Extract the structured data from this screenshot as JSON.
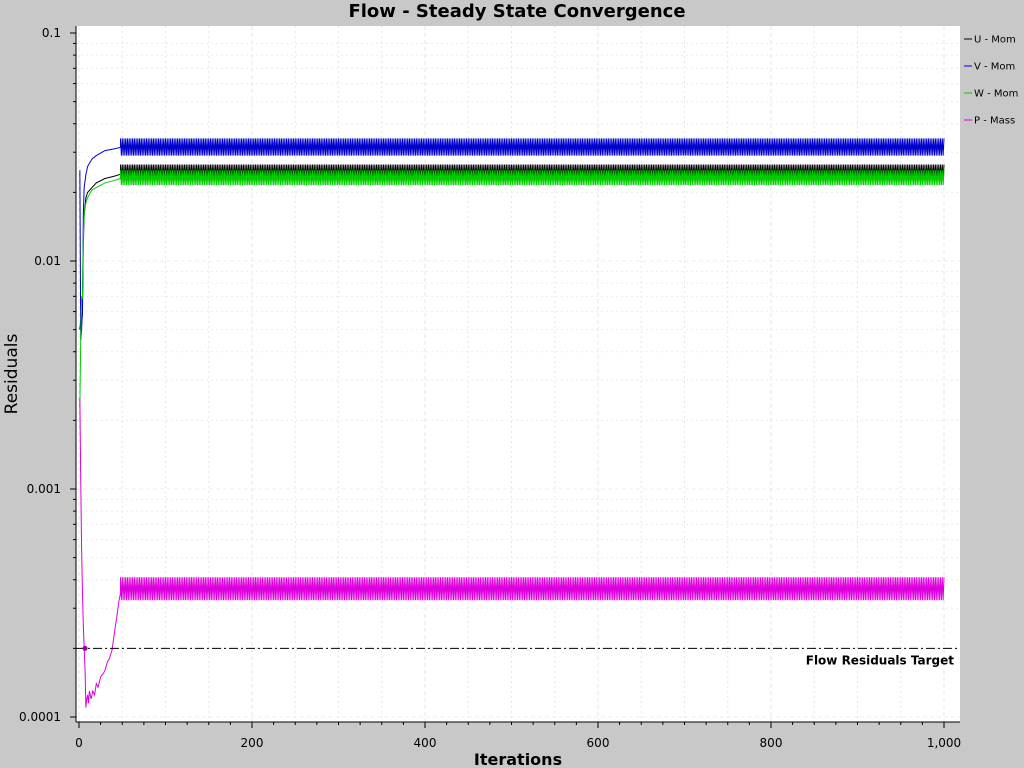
{
  "chart_data": {
    "type": "line",
    "title": "Flow - Steady State Convergence",
    "xlabel": "Iterations",
    "ylabel": "Residuals",
    "xlim": [
      0,
      1000
    ],
    "ylim": [
      0.0001,
      0.1
    ],
    "yscale": "log",
    "x_ticks": [
      0,
      200,
      400,
      600,
      800,
      1000
    ],
    "x_tick_labels": [
      "0",
      "200",
      "400",
      "600",
      "800",
      "1,000"
    ],
    "y_ticks": [
      0.1,
      0.01,
      0.001,
      0.0001
    ],
    "y_tick_labels": [
      "0.1",
      "0.01",
      "0.001",
      "0.0001"
    ],
    "grid": true,
    "legend_position": "top-right",
    "series": [
      {
        "name": "U - Mom",
        "color": "#000000",
        "x": [
          1,
          2,
          3,
          4,
          5,
          6,
          8,
          10,
          15,
          20,
          30,
          40,
          48
        ],
        "y": [
          0.005,
          0.0055,
          0.0052,
          0.006,
          0.012,
          0.016,
          0.019,
          0.02,
          0.021,
          0.022,
          0.023,
          0.0235,
          0.024
        ],
        "oscillation": {
          "start": 48,
          "end": 1000,
          "min": 0.0225,
          "max": 0.0265,
          "period": 2
        }
      },
      {
        "name": "V - Mom",
        "color": "#0000cc",
        "x": [
          1,
          2,
          3,
          4,
          5,
          6,
          8,
          10,
          15,
          20,
          30,
          40,
          48
        ],
        "y": [
          0.025,
          0.0045,
          0.005,
          0.006,
          0.016,
          0.021,
          0.024,
          0.026,
          0.028,
          0.029,
          0.0305,
          0.031,
          0.0315
        ],
        "oscillation": {
          "start": 48,
          "end": 1000,
          "min": 0.029,
          "max": 0.0345,
          "period": 2
        }
      },
      {
        "name": "W - Mom",
        "color": "#00cc00",
        "x": [
          1,
          2,
          3,
          4,
          5,
          6,
          8,
          10,
          15,
          20,
          30,
          40,
          48
        ],
        "y": [
          0.0023,
          0.0045,
          0.007,
          0.0068,
          0.013,
          0.016,
          0.018,
          0.019,
          0.0205,
          0.021,
          0.022,
          0.0225,
          0.023
        ],
        "oscillation": {
          "start": 48,
          "end": 1000,
          "min": 0.0215,
          "max": 0.025,
          "period": 2
        }
      },
      {
        "name": "P - Mass",
        "color": "#dd00dd",
        "x": [
          1,
          2,
          3,
          4,
          5,
          6,
          7,
          8,
          9,
          10,
          11,
          12,
          14,
          16,
          18,
          20,
          22,
          25,
          28,
          30,
          33,
          35,
          38,
          40,
          42,
          44,
          46,
          48
        ],
        "y": [
          0.0025,
          0.0011,
          0.00055,
          0.00035,
          0.00025,
          0.0002,
          0.00016,
          0.00011,
          0.00012,
          0.000125,
          0.000115,
          0.00013,
          0.00012,
          0.00013,
          0.000125,
          0.00014,
          0.000135,
          0.00015,
          0.000155,
          0.00016,
          0.000175,
          0.00018,
          0.000195,
          0.00022,
          0.00025,
          0.00028,
          0.00032,
          0.00035
        ],
        "oscillation": {
          "start": 48,
          "end": 1000,
          "min": 0.000325,
          "max": 0.00041,
          "period": 2
        }
      }
    ],
    "reference_line": {
      "label": "Flow Residuals Target",
      "y": 0.0002,
      "style": "dash-dot"
    }
  }
}
